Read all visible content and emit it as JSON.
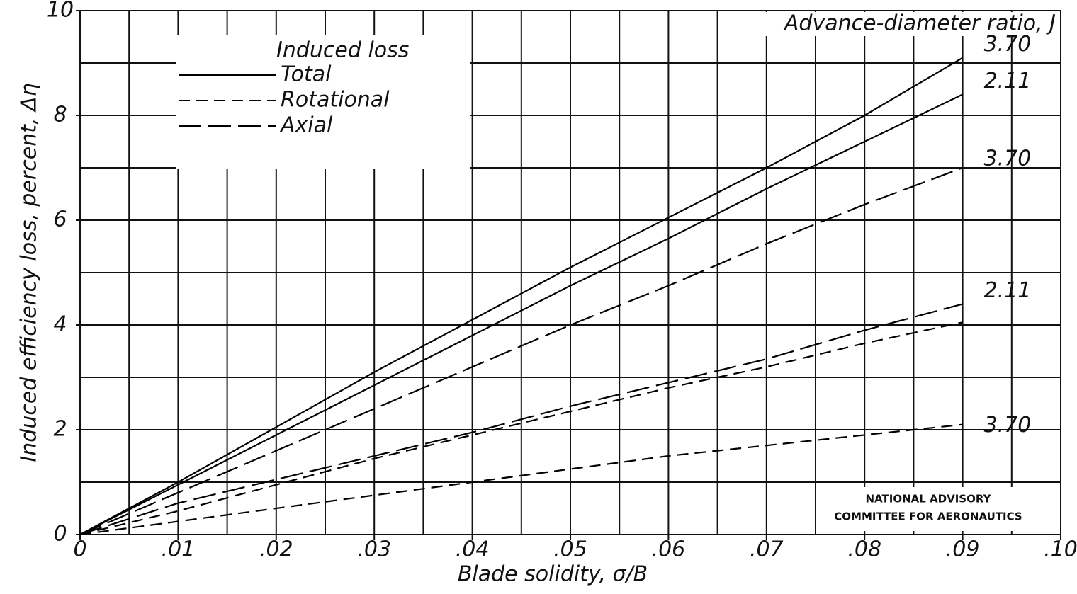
{
  "chart_data": {
    "type": "line",
    "xlabel": "Blade solidity, σ/B",
    "ylabel": "Induced efficiency loss, percent, Δη",
    "legend_title": "Induced loss",
    "curve_label_title": "Advance-diameter ratio, J",
    "credit": [
      "NATIONAL ADVISORY",
      "COMMITTEE FOR AERONAUTICS"
    ],
    "x": [
      0,
      0.01,
      0.02,
      0.03,
      0.04,
      0.05,
      0.06,
      0.07,
      0.08,
      0.09
    ],
    "series": [
      {
        "name": "Total",
        "dash": "solid",
        "color": "#000000",
        "curves": [
          {
            "label": "3.70",
            "values": [
              0,
              1.0,
              2.05,
              3.1,
              4.1,
              5.1,
              6.05,
              7.0,
              8.0,
              9.1
            ]
          },
          {
            "label": "2.11",
            "values": [
              0,
              0.95,
              1.9,
              2.85,
              3.8,
              4.75,
              5.65,
              6.6,
              7.5,
              8.4
            ]
          }
        ]
      },
      {
        "name": "Rotational",
        "dash": "short",
        "color": "#000000",
        "curves": [
          {
            "values": [
              0,
              0.45,
              0.95,
              1.45,
              1.9,
              2.35,
              2.8,
              3.2,
              3.65,
              4.05
            ]
          },
          {
            "label": "3.70",
            "values": [
              0,
              0.25,
              0.5,
              0.75,
              1.0,
              1.25,
              1.5,
              1.7,
              1.9,
              2.1
            ]
          }
        ]
      },
      {
        "name": "Axial",
        "dash": "long",
        "color": "#000000",
        "curves": [
          {
            "label": "3.70",
            "values": [
              0,
              0.8,
              1.6,
              2.4,
              3.2,
              4.0,
              4.75,
              5.55,
              6.3,
              7.0
            ]
          },
          {
            "label": "2.11",
            "values": [
              0,
              0.6,
              1.05,
              1.5,
              1.95,
              2.45,
              2.9,
              3.35,
              3.9,
              4.4
            ]
          }
        ]
      }
    ],
    "xlim": [
      0,
      0.1
    ],
    "ylim": [
      0,
      10
    ],
    "xticks": [
      {
        "value": 0,
        "label": "0"
      },
      {
        "value": 0.01,
        "label": ".01"
      },
      {
        "value": 0.02,
        "label": ".02"
      },
      {
        "value": 0.03,
        "label": ".03"
      },
      {
        "value": 0.04,
        "label": ".04"
      },
      {
        "value": 0.05,
        "label": ".05"
      },
      {
        "value": 0.06,
        "label": ".06"
      },
      {
        "value": 0.07,
        "label": ".07"
      },
      {
        "value": 0.08,
        "label": ".08"
      },
      {
        "value": 0.09,
        "label": ".09"
      },
      {
        "value": 0.1,
        "label": ".10"
      }
    ],
    "yticks": [
      0,
      2,
      4,
      6,
      8,
      10
    ],
    "x_minor_grid": [
      0.005,
      0.015,
      0.025,
      0.035,
      0.045,
      0.055,
      0.065,
      0.075,
      0.085,
      0.095
    ],
    "y_minor_grid": [
      1,
      3,
      5,
      7,
      9
    ],
    "grid": true
  }
}
